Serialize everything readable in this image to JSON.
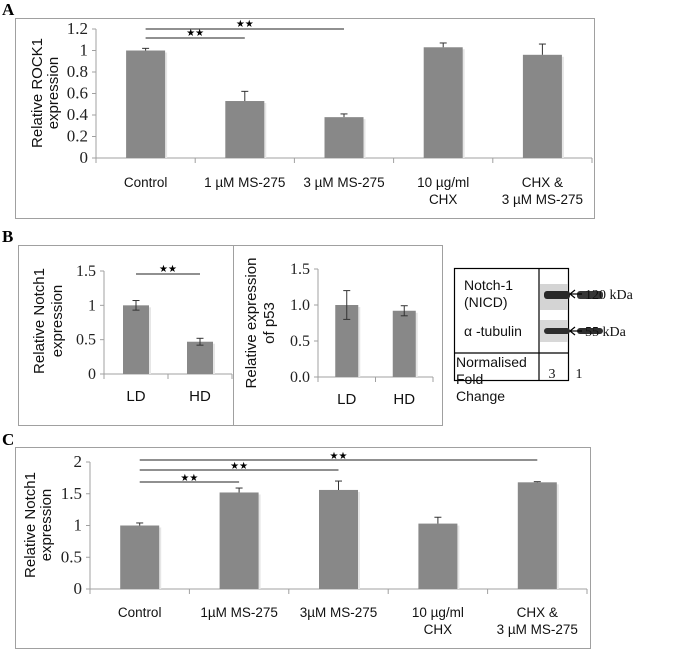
{
  "panels": {
    "A": {
      "letter": "A"
    },
    "B": {
      "letter": "B"
    },
    "C": {
      "letter": "C"
    }
  },
  "chart_data": [
    {
      "id": "A",
      "type": "bar",
      "title": "",
      "xlabel": "",
      "ylabel": "Relative ROCK1 expression",
      "ylabel_lines": [
        "Relative ROCK1",
        "expression"
      ],
      "categories": [
        "Control",
        "1 µM MS-275",
        "3 µM MS-275",
        "10 µg/ml CHX",
        "CHX & 3 µM MS-275"
      ],
      "category_lines": [
        [
          "Control"
        ],
        [
          "1 µM MS-275"
        ],
        [
          "3 µM MS-275"
        ],
        [
          "10 µg/ml",
          "CHX"
        ],
        [
          "CHX  &",
          "3 µM MS-275"
        ]
      ],
      "values": [
        1.0,
        0.53,
        0.38,
        1.03,
        0.96
      ],
      "errors": [
        0.02,
        0.09,
        0.03,
        0.04,
        0.1
      ],
      "ylim": [
        0,
        1.2
      ],
      "yticks": [
        0,
        0.2,
        0.4,
        0.6,
        0.8,
        1,
        1.2
      ],
      "ytick_labels": [
        "0",
        "0.2",
        "0.4",
        "0.6",
        "0.8",
        "1",
        "1.2"
      ],
      "grid": false,
      "bar_color": "#888888",
      "significance": [
        {
          "from": 0,
          "to": 1,
          "label": "★★"
        },
        {
          "from": 0,
          "to": 2,
          "label": "★★"
        }
      ]
    },
    {
      "id": "B-left",
      "type": "bar",
      "ylabel": "Relative Notch1 expression",
      "ylabel_lines": [
        "Relative Notch1",
        "expression"
      ],
      "categories": [
        "LD",
        "HD"
      ],
      "values": [
        1.0,
        0.47
      ],
      "errors": [
        0.07,
        0.05
      ],
      "ylim": [
        0,
        1.5
      ],
      "yticks": [
        0,
        0.5,
        1,
        1.5
      ],
      "ytick_labels": [
        "0",
        "0.5",
        "1",
        "1.5"
      ],
      "grid": false,
      "bar_color": "#888888",
      "significance": [
        {
          "from": 0,
          "to": 1,
          "label": "★★"
        }
      ]
    },
    {
      "id": "B-middle",
      "type": "bar",
      "ylabel": "Relative expression of p53",
      "ylabel_lines": [
        "Relative expression",
        "of p53"
      ],
      "categories": [
        "LD",
        "HD"
      ],
      "values": [
        1.0,
        0.92
      ],
      "errors": [
        0.2,
        0.07
      ],
      "ylim": [
        0,
        1.5
      ],
      "yticks": [
        0,
        0.5,
        1.0,
        1.5
      ],
      "ytick_labels": [
        "0.0",
        "0.5",
        "1.0",
        "1.5"
      ],
      "grid": false,
      "bar_color": "#888888",
      "significance": []
    },
    {
      "id": "C",
      "type": "bar",
      "ylabel": "Relative Notch1 expression",
      "ylabel_lines": [
        "Relative Notch1",
        "expression"
      ],
      "categories": [
        "Control",
        "1µM MS-275",
        "3µM MS-275",
        "10 µg/ml CHX",
        "CHX & 3 µM MS-275"
      ],
      "category_lines": [
        [
          "Control"
        ],
        [
          "1µM MS-275"
        ],
        [
          "3µM MS-275"
        ],
        [
          "10 µg/ml",
          "CHX"
        ],
        [
          "CHX &",
          "3 µM MS-275"
        ]
      ],
      "values": [
        1.0,
        1.52,
        1.56,
        1.03,
        1.68
      ],
      "errors": [
        0.04,
        0.07,
        0.14,
        0.1,
        0.01
      ],
      "ylim": [
        0,
        2
      ],
      "yticks": [
        0,
        0.5,
        1,
        1.5,
        2
      ],
      "ytick_labels": [
        "0",
        "0.5",
        "1",
        "1.5",
        "2"
      ],
      "grid": false,
      "bar_color": "#888888",
      "significance": [
        {
          "from": 0,
          "to": 1,
          "label": "★★"
        },
        {
          "from": 0,
          "to": 2,
          "label": "★★"
        },
        {
          "from": 0,
          "to": 4,
          "label": "★★"
        }
      ]
    }
  ],
  "western_blot": {
    "rows": [
      {
        "label_lines": [
          "Notch-1",
          "(NICD)"
        ],
        "marker": "120 kDa",
        "band_intensity": [
          1.0,
          0.75
        ]
      },
      {
        "label_lines": [
          "α -tubulin"
        ],
        "marker": "55 kDa",
        "band_intensity": [
          0.9,
          0.9
        ]
      }
    ],
    "fold_change_label_lines": [
      "Normalised",
      "Fold",
      "Change"
    ],
    "fold_change_values": [
      "3",
      "1"
    ]
  }
}
